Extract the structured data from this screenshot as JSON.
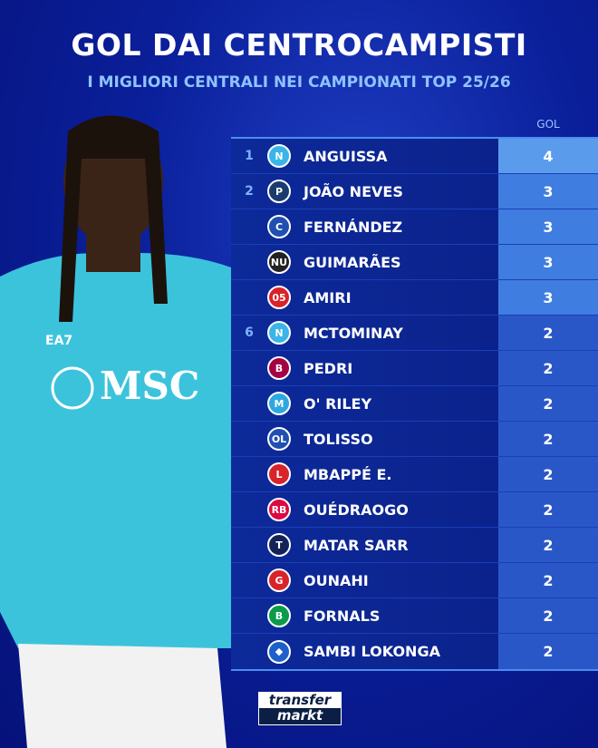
{
  "title": "GOL DAI CENTROCAMPISTI",
  "subtitle": "I MIGLIORI CENTRALI NEI CAMPIONATI TOP 25/26",
  "column_header": "GOL",
  "rows": [
    {
      "rank": "1",
      "club_icon": "napoli-logo",
      "color": "#3bb5e8",
      "abbr": "N",
      "name": "ANGUISSA",
      "goals": "4"
    },
    {
      "rank": "2",
      "club_icon": "psg-logo",
      "color": "#1b3b6f",
      "abbr": "P",
      "name": "JOÃO NEVES",
      "goals": "3"
    },
    {
      "rank": "",
      "club_icon": "chelsea-logo",
      "color": "#1f4fb0",
      "abbr": "C",
      "name": "FERNÁNDEZ",
      "goals": "3"
    },
    {
      "rank": "",
      "club_icon": "newcastle-logo",
      "color": "#222222",
      "abbr": "NU",
      "name": "GUIMARÃES",
      "goals": "3"
    },
    {
      "rank": "",
      "club_icon": "mainz-logo",
      "color": "#d8232a",
      "abbr": "05",
      "name": "AMIRI",
      "goals": "3"
    },
    {
      "rank": "6",
      "club_icon": "napoli-logo",
      "color": "#3bb5e8",
      "abbr": "N",
      "name": "MCTOMINAY",
      "goals": "2"
    },
    {
      "rank": "",
      "club_icon": "barcelona-logo",
      "color": "#a50044",
      "abbr": "B",
      "name": "PEDRI",
      "goals": "2"
    },
    {
      "rank": "",
      "club_icon": "marseille-logo",
      "color": "#2fa8e0",
      "abbr": "M",
      "name": "O' RILEY",
      "goals": "2"
    },
    {
      "rank": "",
      "club_icon": "lyon-logo",
      "color": "#1f4fb0",
      "abbr": "OL",
      "name": "TOLISSO",
      "goals": "2"
    },
    {
      "rank": "",
      "club_icon": "lille-logo",
      "color": "#d8232a",
      "abbr": "L",
      "name": "MBAPPÉ E.",
      "goals": "2"
    },
    {
      "rank": "",
      "club_icon": "leipzig-logo",
      "color": "#dd0741",
      "abbr": "RB",
      "name": "OUÉDRAOGO",
      "goals": "2"
    },
    {
      "rank": "",
      "club_icon": "tottenham-logo",
      "color": "#132257",
      "abbr": "T",
      "name": "MATAR SARR",
      "goals": "2"
    },
    {
      "rank": "",
      "club_icon": "girona-logo",
      "color": "#d8232a",
      "abbr": "G",
      "name": "OUNAHI",
      "goals": "2"
    },
    {
      "rank": "",
      "club_icon": "betis-logo",
      "color": "#0b9b4a",
      "abbr": "B",
      "name": "FORNALS",
      "goals": "2"
    },
    {
      "rank": "",
      "club_icon": "hamburg-logo",
      "color": "#1f5fc8",
      "abbr": "◆",
      "name": "SAMBI LOKONGA",
      "goals": "2"
    }
  ],
  "branding": {
    "line1": "transfer",
    "line2": "markt"
  },
  "jersey": {
    "sponsor": "MSC",
    "kit": "EA7"
  }
}
